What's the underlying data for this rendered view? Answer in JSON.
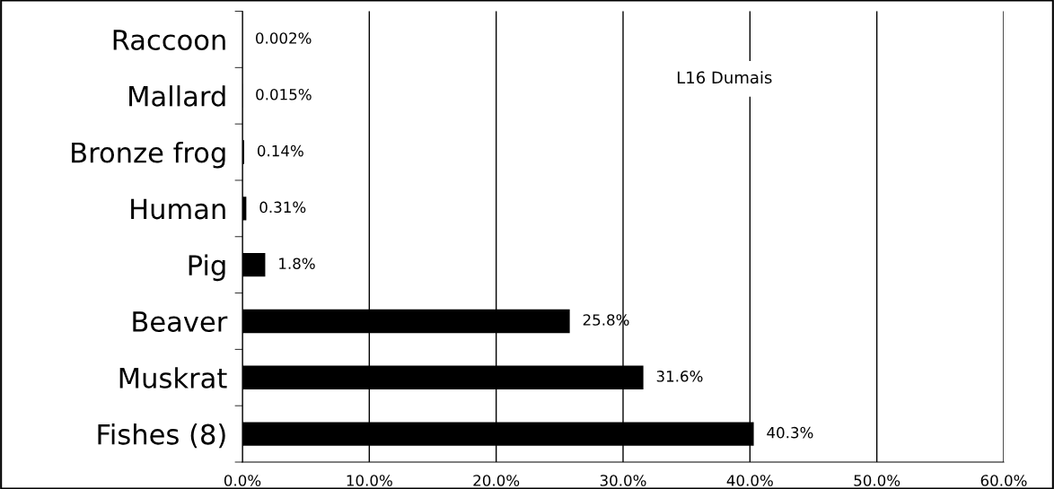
{
  "chart_data": {
    "type": "bar",
    "orientation": "horizontal",
    "categories": [
      "Raccoon",
      "Mallard",
      "Bronze frog",
      "Human",
      "Pig",
      "Beaver",
      "Muskrat",
      "Fishes (8)"
    ],
    "values": [
      0.002,
      0.015,
      0.14,
      0.31,
      1.8,
      25.8,
      31.6,
      40.3
    ],
    "value_labels": [
      "0.002%",
      "0.015%",
      "0.14%",
      "0.31%",
      "1.8%",
      "25.8%",
      "31.6%",
      "40.3%"
    ],
    "color": "#000000",
    "xlim": [
      0,
      60
    ],
    "xticks": [
      {
        "value": 0,
        "label": "0.0%"
      },
      {
        "value": 10,
        "label": "10.0%"
      },
      {
        "value": 20,
        "label": "20.0%"
      },
      {
        "value": 30,
        "label": "30.0%"
      },
      {
        "value": 40,
        "label": "40.0%"
      },
      {
        "value": 50,
        "label": "50.0%"
      },
      {
        "value": 60,
        "label": "60.0%"
      }
    ],
    "grid": "x",
    "annotations": [
      "L16 Dumais"
    ]
  }
}
